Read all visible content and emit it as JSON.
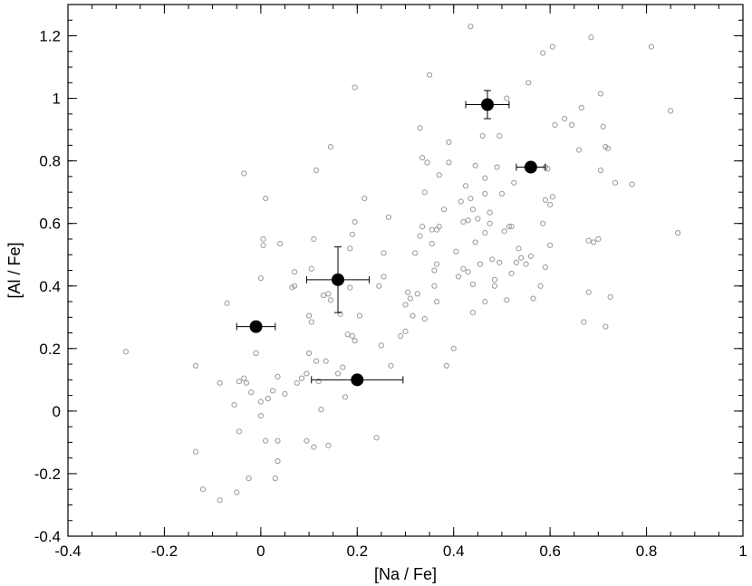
{
  "chart_data": {
    "type": "scatter",
    "title": "",
    "xlabel": "[Na / Fe]",
    "ylabel": "[Al / Fe]",
    "xlim": [
      -0.4,
      1.0
    ],
    "ylim": [
      -0.4,
      1.3
    ],
    "x_ticks": [
      -0.4,
      -0.2,
      0,
      0.2,
      0.4,
      0.6,
      0.8,
      1
    ],
    "y_ticks": [
      -0.4,
      -0.2,
      0,
      0.2,
      0.4,
      0.6,
      0.8,
      1,
      1.2
    ],
    "x_tick_labels": [
      "-0.4",
      "-0.2",
      "0",
      "0.2",
      "0.4",
      "0.6",
      "0.8",
      "1"
    ],
    "y_tick_labels": [
      "-0.4",
      "-0.2",
      "0",
      "0.2",
      "0.4",
      "0.6",
      "0.8",
      "1",
      "1.2"
    ],
    "grid": false,
    "legend": "none",
    "colors": {
      "open_marker": "#999999",
      "filled_marker": "#000000",
      "axis": "#000000"
    },
    "series": [
      {
        "marker": "open-circle",
        "points": [
          [
            -0.28,
            0.19
          ],
          [
            -0.135,
            0.145
          ],
          [
            -0.135,
            -0.13
          ],
          [
            -0.12,
            -0.25
          ],
          [
            -0.085,
            0.09
          ],
          [
            -0.085,
            -0.285
          ],
          [
            -0.07,
            0.345
          ],
          [
            -0.055,
            0.02
          ],
          [
            -0.05,
            -0.26
          ],
          [
            -0.045,
            0.095
          ],
          [
            -0.045,
            -0.065
          ],
          [
            -0.035,
            0.105
          ],
          [
            -0.035,
            0.76
          ],
          [
            -0.03,
            0.09
          ],
          [
            -0.025,
            -0.215
          ],
          [
            -0.02,
            0.06
          ],
          [
            -0.01,
            0.185
          ],
          [
            0.0,
            0.03
          ],
          [
            0.0,
            -0.015
          ],
          [
            0.0,
            0.425
          ],
          [
            0.005,
            0.55
          ],
          [
            0.005,
            0.53
          ],
          [
            0.01,
            -0.095
          ],
          [
            0.01,
            0.68
          ],
          [
            0.015,
            0.04
          ],
          [
            0.025,
            0.065
          ],
          [
            0.03,
            -0.215
          ],
          [
            0.035,
            -0.16
          ],
          [
            0.035,
            0.11
          ],
          [
            0.035,
            -0.095
          ],
          [
            0.04,
            0.535
          ],
          [
            0.05,
            0.055
          ],
          [
            0.065,
            0.395
          ],
          [
            0.07,
            0.4
          ],
          [
            0.07,
            0.445
          ],
          [
            0.075,
            0.09
          ],
          [
            0.085,
            0.105
          ],
          [
            0.095,
            0.12
          ],
          [
            0.095,
            -0.095
          ],
          [
            0.1,
            0.185
          ],
          [
            0.1,
            0.305
          ],
          [
            0.105,
            0.455
          ],
          [
            0.105,
            0.285
          ],
          [
            0.11,
            0.55
          ],
          [
            0.11,
            -0.115
          ],
          [
            0.115,
            0.77
          ],
          [
            0.115,
            0.16
          ],
          [
            0.12,
            0.095
          ],
          [
            0.125,
            0.005
          ],
          [
            0.13,
            0.37
          ],
          [
            0.135,
            0.16
          ],
          [
            0.14,
            0.375
          ],
          [
            0.14,
            -0.11
          ],
          [
            0.145,
            0.355
          ],
          [
            0.145,
            0.845
          ],
          [
            0.16,
            0.12
          ],
          [
            0.165,
            0.31
          ],
          [
            0.17,
            0.14
          ],
          [
            0.175,
            0.045
          ],
          [
            0.18,
            0.245
          ],
          [
            0.185,
            0.52
          ],
          [
            0.185,
            0.395
          ],
          [
            0.19,
            0.24
          ],
          [
            0.19,
            0.565
          ],
          [
            0.195,
            0.225
          ],
          [
            0.195,
            0.605
          ],
          [
            0.195,
            1.035
          ],
          [
            0.205,
            0.305
          ],
          [
            0.215,
            0.68
          ],
          [
            0.24,
            -0.085
          ],
          [
            0.245,
            0.4
          ],
          [
            0.25,
            0.21
          ],
          [
            0.255,
            0.43
          ],
          [
            0.255,
            0.505
          ],
          [
            0.265,
            0.62
          ],
          [
            0.27,
            0.145
          ],
          [
            0.29,
            0.24
          ],
          [
            0.3,
            0.255
          ],
          [
            0.3,
            0.34
          ],
          [
            0.305,
            0.38
          ],
          [
            0.31,
            0.36
          ],
          [
            0.315,
            0.305
          ],
          [
            0.32,
            0.505
          ],
          [
            0.325,
            0.375
          ],
          [
            0.33,
            0.56
          ],
          [
            0.33,
            0.905
          ],
          [
            0.335,
            0.81
          ],
          [
            0.335,
            0.59
          ],
          [
            0.34,
            0.7
          ],
          [
            0.345,
            0.795
          ],
          [
            0.34,
            0.295
          ],
          [
            0.35,
            1.075
          ],
          [
            0.355,
            0.58
          ],
          [
            0.355,
            0.535
          ],
          [
            0.36,
            0.4
          ],
          [
            0.36,
            0.45
          ],
          [
            0.365,
            0.35
          ],
          [
            0.365,
            0.58
          ],
          [
            0.365,
            0.47
          ],
          [
            0.37,
            0.755
          ],
          [
            0.37,
            0.59
          ],
          [
            0.38,
            0.645
          ],
          [
            0.385,
            0.145
          ],
          [
            0.39,
            0.795
          ],
          [
            0.39,
            0.86
          ],
          [
            0.4,
            0.2
          ],
          [
            0.405,
            0.51
          ],
          [
            0.41,
            0.43
          ],
          [
            0.415,
            0.67
          ],
          [
            0.42,
            0.605
          ],
          [
            0.42,
            0.455
          ],
          [
            0.425,
            0.72
          ],
          [
            0.43,
            0.445
          ],
          [
            0.43,
            0.61
          ],
          [
            0.435,
            0.68
          ],
          [
            0.435,
            1.23
          ],
          [
            0.44,
            0.645
          ],
          [
            0.44,
            0.315
          ],
          [
            0.44,
            0.405
          ],
          [
            0.445,
            0.785
          ],
          [
            0.445,
            0.54
          ],
          [
            0.45,
            0.615
          ],
          [
            0.455,
            0.47
          ],
          [
            0.46,
            0.88
          ],
          [
            0.465,
            0.695
          ],
          [
            0.465,
            0.745
          ],
          [
            0.465,
            0.57
          ],
          [
            0.465,
            0.35
          ],
          [
            0.475,
            0.635
          ],
          [
            0.475,
            0.6
          ],
          [
            0.48,
            0.485
          ],
          [
            0.485,
            0.4
          ],
          [
            0.485,
            0.42
          ],
          [
            0.49,
            0.78
          ],
          [
            0.495,
            0.88
          ],
          [
            0.495,
            0.475
          ],
          [
            0.5,
            0.695
          ],
          [
            0.505,
            0.575
          ],
          [
            0.51,
            1.0
          ],
          [
            0.51,
            0.355
          ],
          [
            0.515,
            0.59
          ],
          [
            0.52,
            0.44
          ],
          [
            0.52,
            0.59
          ],
          [
            0.525,
            0.73
          ],
          [
            0.53,
            0.475
          ],
          [
            0.535,
            0.52
          ],
          [
            0.54,
            0.49
          ],
          [
            0.55,
            0.47
          ],
          [
            0.555,
            1.05
          ],
          [
            0.56,
            0.495
          ],
          [
            0.565,
            0.36
          ],
          [
            0.58,
            0.4
          ],
          [
            0.585,
            1.145
          ],
          [
            0.585,
            0.6
          ],
          [
            0.59,
            0.46
          ],
          [
            0.59,
            0.675
          ],
          [
            0.59,
            0.78
          ],
          [
            0.595,
            0.775
          ],
          [
            0.6,
            0.53
          ],
          [
            0.6,
            0.66
          ],
          [
            0.605,
            1.165
          ],
          [
            0.605,
            0.685
          ],
          [
            0.61,
            0.915
          ],
          [
            0.63,
            0.935
          ],
          [
            0.645,
            0.915
          ],
          [
            0.66,
            0.835
          ],
          [
            0.665,
            0.97
          ],
          [
            0.67,
            0.285
          ],
          [
            0.68,
            0.545
          ],
          [
            0.68,
            0.38
          ],
          [
            0.685,
            1.195
          ],
          [
            0.69,
            0.54
          ],
          [
            0.7,
            0.55
          ],
          [
            0.705,
            0.77
          ],
          [
            0.705,
            1.015
          ],
          [
            0.71,
            0.91
          ],
          [
            0.715,
            0.845
          ],
          [
            0.715,
            0.27
          ],
          [
            0.72,
            0.84
          ],
          [
            0.725,
            0.365
          ],
          [
            0.735,
            0.73
          ],
          [
            0.77,
            0.725
          ],
          [
            0.81,
            1.165
          ],
          [
            0.85,
            0.96
          ],
          [
            0.865,
            0.57
          ]
        ]
      },
      {
        "marker": "filled-circle",
        "points": [
          {
            "x": -0.01,
            "y": 0.27,
            "xerr": 0.04,
            "yerr": 0.0
          },
          {
            "x": 0.16,
            "y": 0.42,
            "xerr": 0.065,
            "yerr": 0.105
          },
          {
            "x": 0.2,
            "y": 0.1,
            "xerr": 0.095,
            "yerr": 0.0
          },
          {
            "x": 0.47,
            "y": 0.98,
            "xerr": 0.045,
            "yerr": 0.045
          },
          {
            "x": 0.56,
            "y": 0.78,
            "xerr": 0.03,
            "yerr": 0.0
          }
        ]
      }
    ]
  }
}
